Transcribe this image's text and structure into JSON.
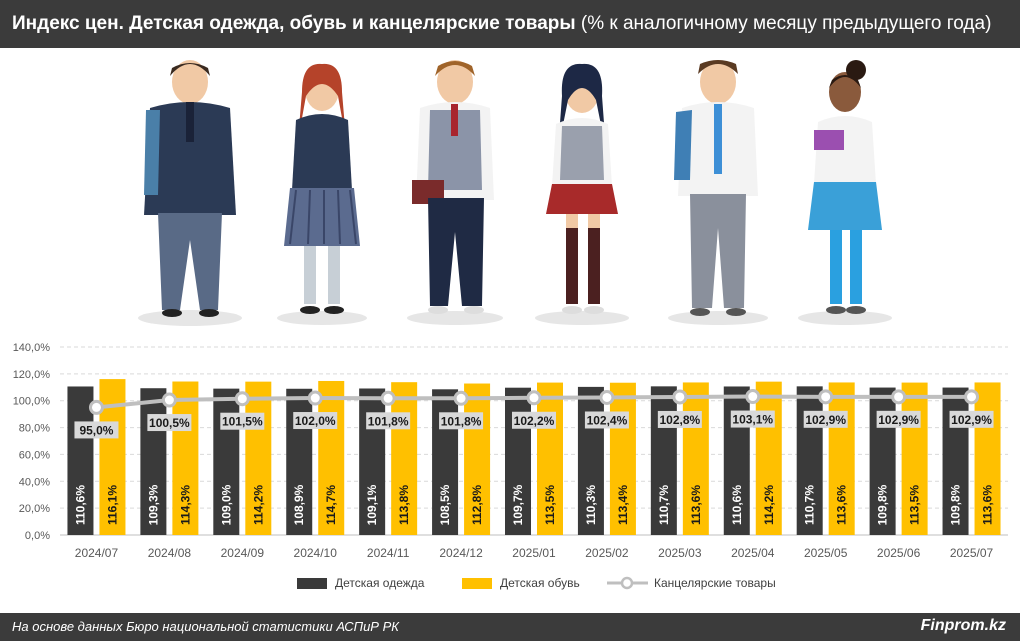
{
  "header": {
    "title_bold": "Индекс цен. Детская одежда, обувь и канцелярские товары",
    "title_rest": " (% к аналогичному месяцу предыдущего года)"
  },
  "footer": {
    "source": "На основе данных Бюро национальной статистики АСПиР РК",
    "brand": "Finprom.kz"
  },
  "colors": {
    "clothing": "#3a3a3a",
    "shoes": "#ffc000",
    "stationery": "#bfbfbf",
    "bar": "#3b3b3b"
  },
  "illustration": {
    "description_icon": "students-illustration-icon"
  },
  "chart_data": {
    "type": "bar",
    "categories": [
      "2024/07",
      "2024/08",
      "2024/09",
      "2024/10",
      "2024/11",
      "2024/12",
      "2025/01",
      "2025/02",
      "2025/03",
      "2025/04",
      "2025/05",
      "2025/06",
      "2025/07"
    ],
    "series": [
      {
        "name": "Детская одежда",
        "type": "bar",
        "values": [
          110.6,
          109.3,
          109.0,
          108.9,
          109.1,
          108.5,
          109.7,
          110.3,
          110.7,
          110.6,
          110.7,
          109.8,
          109.8
        ],
        "labels": [
          "110,6%",
          "109,3%",
          "109,0%",
          "108,9%",
          "109,1%",
          "108,5%",
          "109,7%",
          "110,3%",
          "110,7%",
          "110,6%",
          "110,7%",
          "109,8%",
          "109,8%"
        ]
      },
      {
        "name": "Детская обувь",
        "type": "bar",
        "values": [
          116.1,
          114.3,
          114.2,
          114.7,
          113.8,
          112.8,
          113.5,
          113.4,
          113.6,
          114.2,
          113.6,
          113.5,
          113.6
        ],
        "labels": [
          "116,1%",
          "114,3%",
          "114,2%",
          "114,7%",
          "113,8%",
          "112,8%",
          "113,5%",
          "113,4%",
          "113,6%",
          "114,2%",
          "113,6%",
          "113,5%",
          "113,6%"
        ]
      },
      {
        "name": "Канцелярские товары",
        "type": "line",
        "values": [
          95.0,
          100.5,
          101.5,
          102.0,
          101.8,
          101.8,
          102.2,
          102.4,
          102.8,
          103.1,
          102.9,
          102.9,
          102.9
        ],
        "labels": [
          "95,0%",
          "100,5%",
          "101,5%",
          "102,0%",
          "101,8%",
          "101,8%",
          "102,2%",
          "102,4%",
          "102,8%",
          "103,1%",
          "102,9%",
          "102,9%",
          "102,9%"
        ]
      }
    ],
    "y_ticks": [
      "0,0%",
      "20,0%",
      "40,0%",
      "60,0%",
      "80,0%",
      "100,0%",
      "120,0%",
      "140,0%"
    ],
    "ylim": [
      0,
      140
    ],
    "grid": true,
    "legend_position": "bottom"
  }
}
